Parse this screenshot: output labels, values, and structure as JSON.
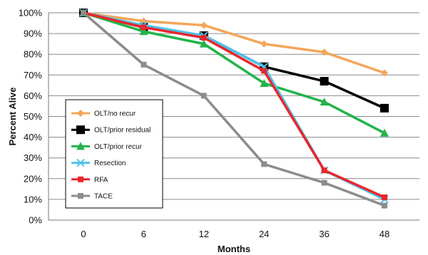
{
  "chart_data": {
    "type": "line",
    "xlabel": "Months",
    "ylabel": "Percent Alive",
    "categories": [
      "0",
      "6",
      "12",
      "24",
      "36",
      "48"
    ],
    "ylim": [
      0,
      100
    ],
    "y_ticks": [
      "0%",
      "10%",
      "20%",
      "30%",
      "40%",
      "50%",
      "60%",
      "70%",
      "80%",
      "90%",
      "100%"
    ],
    "grid": "horizontal",
    "legend_position": "lower-left inside plot",
    "series": [
      {
        "name": "OLT/no recur",
        "values": [
          100,
          96,
          94,
          85,
          81,
          71
        ],
        "color": "#f4a65a",
        "marker": "diamond"
      },
      {
        "name": "OLT/prior residual",
        "values": [
          100,
          93,
          89,
          74,
          67,
          54
        ],
        "color": "#000000",
        "marker": "square"
      },
      {
        "name": "OLT/prior recur",
        "values": [
          100,
          91,
          85,
          66,
          57,
          42
        ],
        "color": "#22b34a",
        "marker": "triangle"
      },
      {
        "name": "Resection",
        "values": [
          100,
          94,
          89,
          74,
          24,
          10
        ],
        "color": "#4fc3ea",
        "marker": "x"
      },
      {
        "name": "RFA",
        "values": [
          100,
          93,
          88,
          72,
          24,
          11
        ],
        "color": "#e8262d",
        "marker": "square-small"
      },
      {
        "name": "TACE",
        "values": [
          100,
          75,
          60,
          27,
          18,
          7
        ],
        "color": "#8c8c8c",
        "marker": "square-small"
      }
    ]
  }
}
